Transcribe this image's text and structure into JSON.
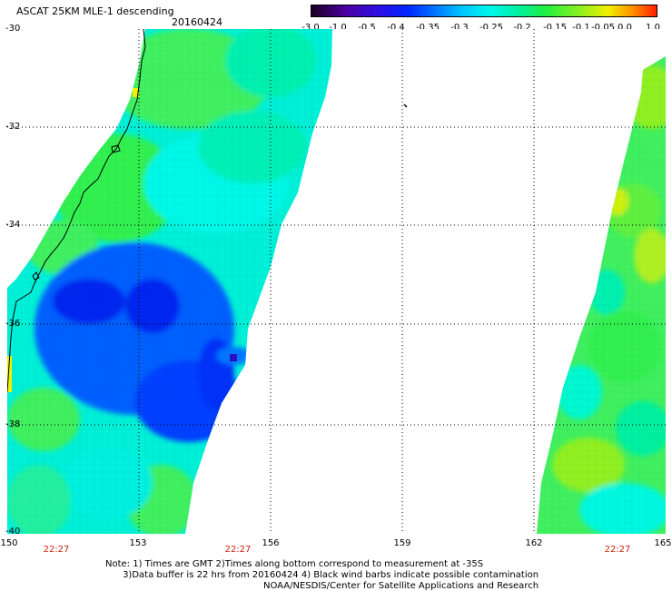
{
  "title": "ASCAT 25KM MLE-1 descending",
  "date": "20160424",
  "colorscale": {
    "labels": [
      "-3.0",
      "-1.0",
      "-0.5",
      "-0.4",
      "-0.35",
      "-0.3",
      "-0.25",
      "-0.2",
      "-0.15",
      "-0.1",
      "-0.05",
      "0.0",
      "1.0"
    ],
    "colors": [
      "#1a0020",
      "#4b00a0",
      "#2a10e8",
      "#0026ff",
      "#0078ff",
      "#00c8ff",
      "#00f8e8",
      "#00f0a0",
      "#20f040",
      "#90f020",
      "#f0f000",
      "#ff9000",
      "#ff2000"
    ]
  },
  "axes": {
    "lat_labels": [
      "-30",
      "-32",
      "-34",
      "-36",
      "-38",
      "-40"
    ],
    "lon_labels": [
      "150",
      "153",
      "156",
      "159",
      "162",
      "165"
    ],
    "lat_range": [
      -40,
      -30
    ],
    "lon_range": [
      150,
      165
    ]
  },
  "times": [
    "22:27",
    "22:27",
    "22:27"
  ],
  "note_lines": [
    "Note: 1) Times are GMT 2)Times along bottom correspond to measurement at -35S",
    "      3)Data buffer is 22 hrs from 20160424 4) Black wind barbs indicate possible contamination"
  ],
  "credit": "NOAA/NESDIS/Center for Satellite Applications and Research"
}
